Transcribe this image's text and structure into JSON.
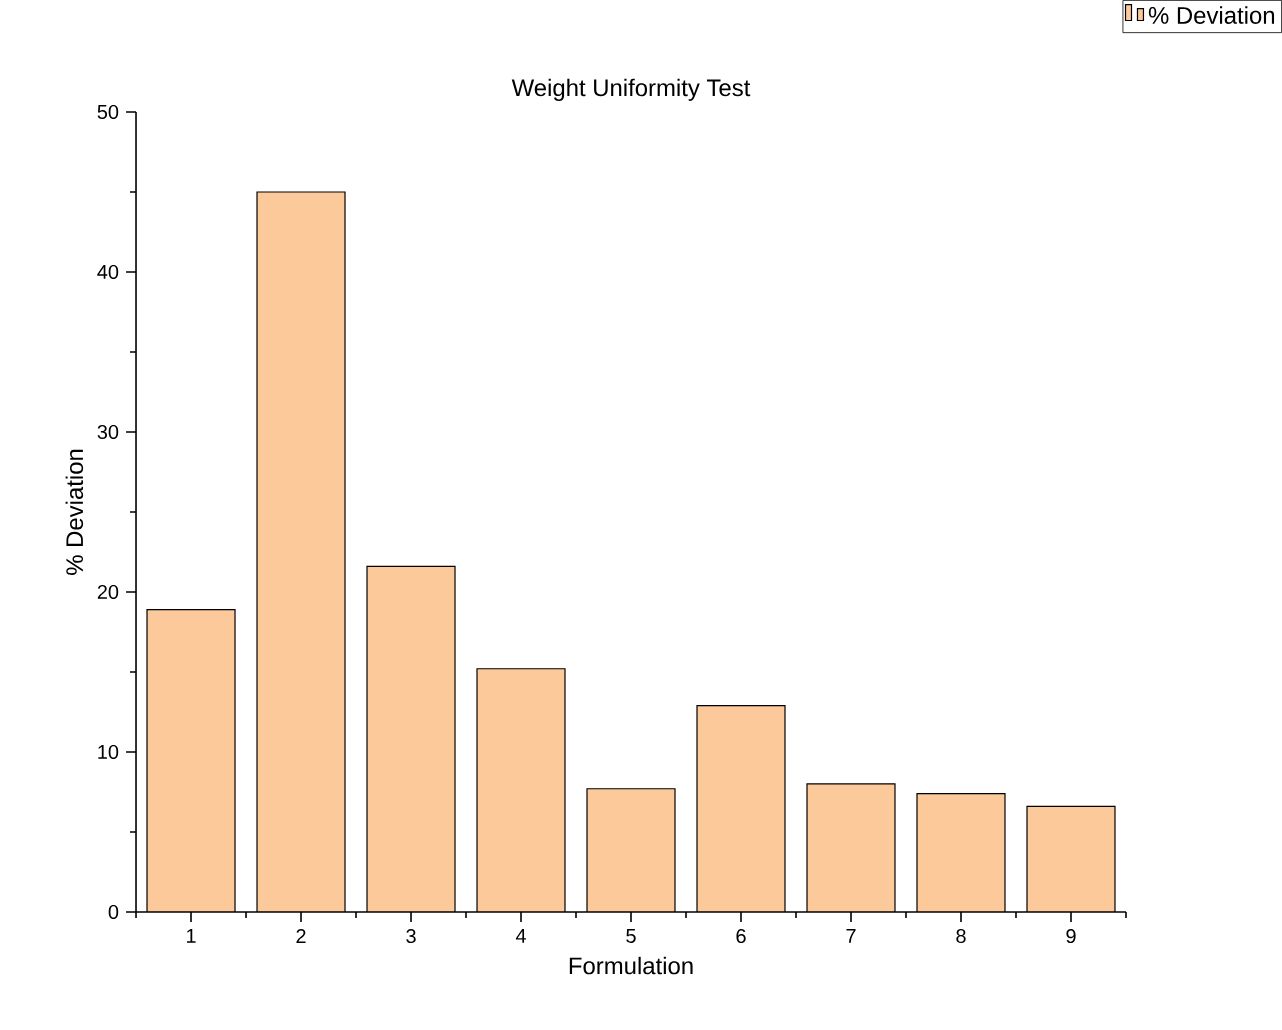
{
  "chart_data": {
    "type": "bar",
    "title": "Weight Uniformity Test",
    "xlabel": "Formulation",
    "ylabel": "% Deviation",
    "categories": [
      "1",
      "2",
      "3",
      "4",
      "5",
      "6",
      "7",
      "8",
      "9"
    ],
    "series": [
      {
        "name": "% Deviation",
        "color": "#fbc99a",
        "values": [
          18.9,
          45.0,
          21.6,
          15.2,
          7.7,
          12.9,
          8.0,
          7.4,
          6.6
        ]
      }
    ],
    "ylim": [
      0,
      50
    ],
    "yticks": [
      0,
      10,
      20,
      30,
      40,
      50
    ],
    "legend": "top right"
  }
}
